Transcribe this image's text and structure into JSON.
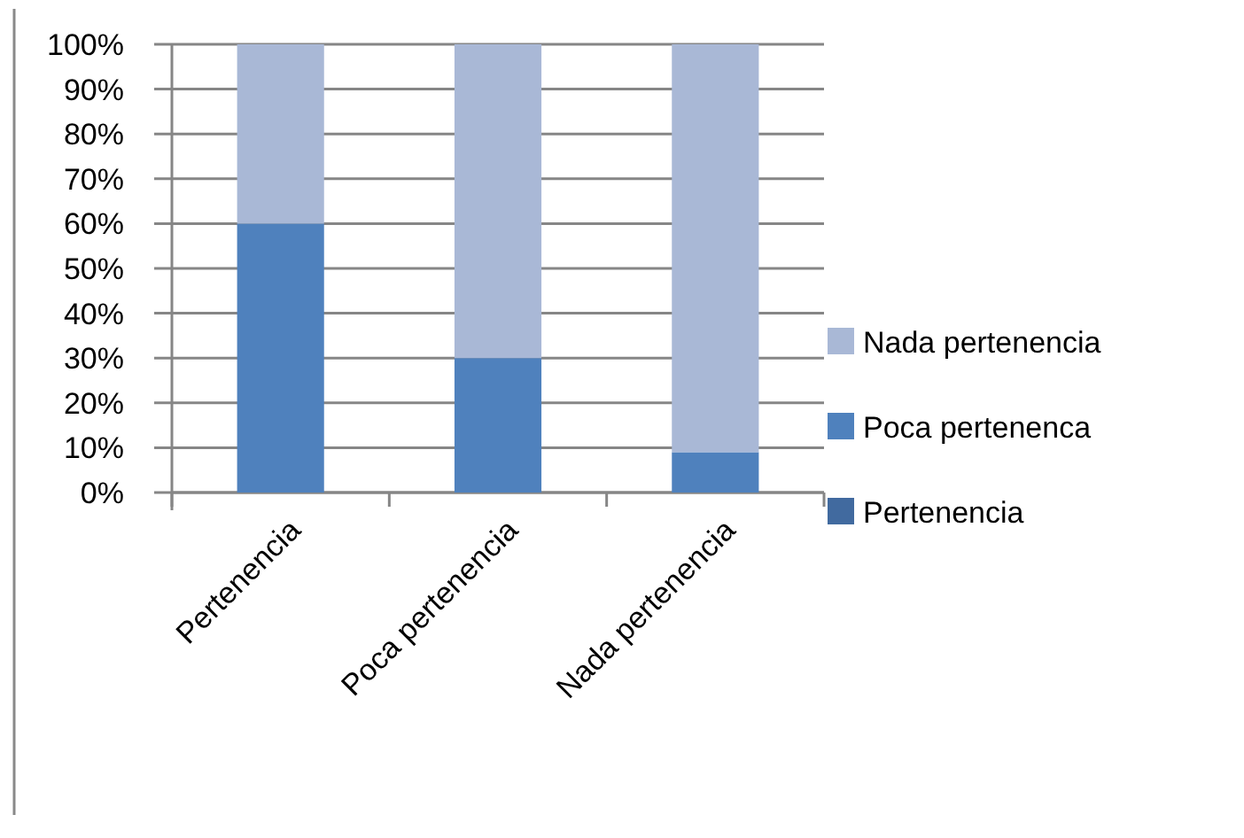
{
  "chart_data": {
    "type": "bar",
    "stacked": true,
    "categories": [
      "Pertenencia",
      "Poca pertenencia",
      "Nada pertenencia"
    ],
    "series": [
      {
        "name": "Pertenencia",
        "color": "#416a9f",
        "values": [
          0,
          0,
          0
        ]
      },
      {
        "name": "Poca pertenenca",
        "color": "#4f81bd",
        "values": [
          60,
          30,
          9
        ]
      },
      {
        "name": "Nada pertenencia",
        "color": "#a9b8d6",
        "values": [
          40,
          70,
          91
        ]
      }
    ],
    "ylim": [
      0,
      100
    ],
    "yticks": [
      {
        "value": 0,
        "label": "0%"
      },
      {
        "value": 10,
        "label": "10%"
      },
      {
        "value": 20,
        "label": "20%"
      },
      {
        "value": 30,
        "label": "30%"
      },
      {
        "value": 40,
        "label": "40%"
      },
      {
        "value": 50,
        "label": "50%"
      },
      {
        "value": 60,
        "label": "60%"
      },
      {
        "value": 70,
        "label": "70%"
      },
      {
        "value": 80,
        "label": "80%"
      },
      {
        "value": 90,
        "label": "90%"
      },
      {
        "value": 100,
        "label": "100%"
      }
    ],
    "grid": "y",
    "legend": "right"
  }
}
